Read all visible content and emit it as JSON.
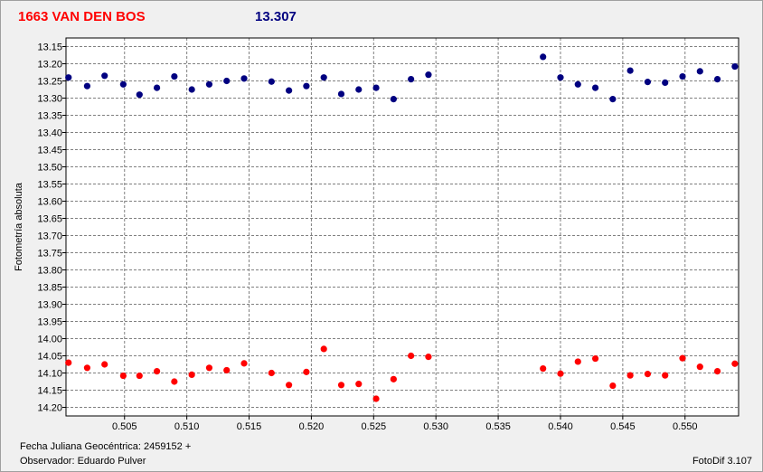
{
  "title": {
    "name": "1663 VAN DEN BOS",
    "magnitude": "13.307"
  },
  "footer": {
    "date_label": "Fecha Juliana Geocéntrica: 2459152 +",
    "observer_label": "Observador: Eduardo Pulver",
    "app_label": "FotoDif 3.107"
  },
  "chart_data": {
    "type": "scatter",
    "title": "1663 VAN DEN BOS",
    "ylabel": "Fotometría absoluta",
    "xlabel": "",
    "xlim": [
      0.5003,
      0.5543
    ],
    "ylim": [
      14.225,
      13.125
    ],
    "y_inverted": true,
    "grid": true,
    "xticks": [
      0.505,
      0.51,
      0.515,
      0.52,
      0.525,
      0.53,
      0.535,
      0.54,
      0.545,
      0.55
    ],
    "xtick_labels": [
      "0.505",
      "0.510",
      "0.515",
      "0.520",
      "0.525",
      "0.530",
      "0.535",
      "0.540",
      "0.545",
      "0.550"
    ],
    "yticks": [
      13.15,
      13.2,
      13.25,
      13.3,
      13.35,
      13.4,
      13.45,
      13.5,
      13.55,
      13.6,
      13.65,
      13.7,
      13.75,
      13.8,
      13.85,
      13.9,
      13.95,
      14.0,
      14.05,
      14.1,
      14.15,
      14.2
    ],
    "ytick_labels": [
      "13.15",
      "13.20",
      "13.25",
      "13.30",
      "13.35",
      "13.40",
      "13.45",
      "13.50",
      "13.55",
      "13.60",
      "13.65",
      "13.70",
      "13.75",
      "13.80",
      "13.85",
      "13.90",
      "13.95",
      "14.00",
      "14.05",
      "14.10",
      "14.15",
      "14.20"
    ],
    "series": [
      {
        "color": "#000080",
        "x": [
          0.5005,
          0.502,
          0.5034,
          0.5049,
          0.5062,
          0.5076,
          0.509,
          0.5104,
          0.5118,
          0.5132,
          0.5146,
          0.5168,
          0.5182,
          0.5196,
          0.521,
          0.5224,
          0.5238,
          0.5252,
          0.5266,
          0.528,
          0.5294,
          0.5386,
          0.54,
          0.5414,
          0.5428,
          0.5442,
          0.5456,
          0.547,
          0.5484,
          0.5498,
          0.5512,
          0.5526,
          0.554
        ],
        "y": [
          13.24,
          13.265,
          13.235,
          13.26,
          13.29,
          13.27,
          13.237,
          13.275,
          13.26,
          13.25,
          13.243,
          13.252,
          13.278,
          13.265,
          13.24,
          13.288,
          13.275,
          13.27,
          13.303,
          13.245,
          13.232,
          13.18,
          13.24,
          13.26,
          13.27,
          13.303,
          13.22,
          13.253,
          13.255,
          13.237,
          13.222,
          13.245,
          13.208
        ]
      },
      {
        "color": "#ff0000",
        "x": [
          0.5005,
          0.502,
          0.5034,
          0.5049,
          0.5062,
          0.5076,
          0.509,
          0.5104,
          0.5118,
          0.5132,
          0.5146,
          0.5168,
          0.5182,
          0.5196,
          0.521,
          0.5224,
          0.5238,
          0.5252,
          0.5266,
          0.528,
          0.5294,
          0.5386,
          0.54,
          0.5414,
          0.5428,
          0.5442,
          0.5456,
          0.547,
          0.5484,
          0.5498,
          0.5512,
          0.5526,
          0.554
        ],
        "y": [
          14.07,
          14.085,
          14.075,
          14.108,
          14.108,
          14.095,
          14.125,
          14.105,
          14.085,
          14.092,
          14.072,
          14.1,
          14.135,
          14.097,
          14.03,
          14.135,
          14.132,
          14.175,
          14.118,
          14.05,
          14.053,
          14.087,
          14.102,
          14.067,
          14.058,
          14.137,
          14.107,
          14.103,
          14.107,
          14.057,
          14.082,
          14.095,
          14.073
        ]
      }
    ]
  }
}
